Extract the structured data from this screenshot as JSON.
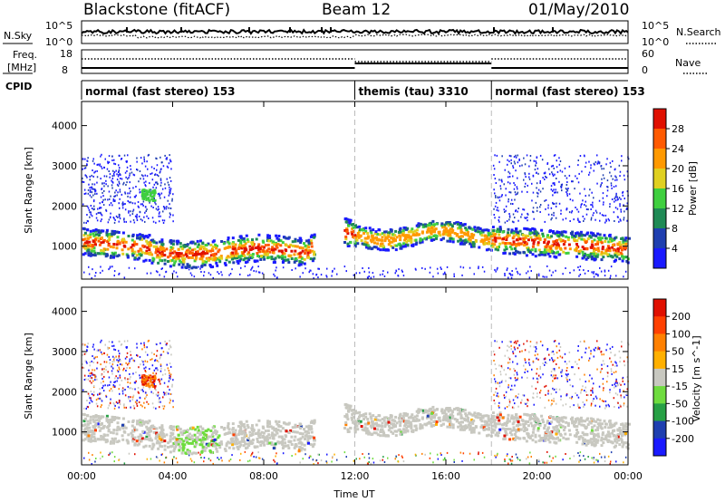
{
  "header": {
    "title": "Blackstone (fitACF)",
    "beam": "Beam 12",
    "date": "01/May/2010"
  },
  "panel_labels": {
    "nsky": "N.Sky",
    "nsearch": "N.Search",
    "freq": "Freq.",
    "freq_unit": "[MHz]",
    "nave": "Nave",
    "cpid": "CPID",
    "nsky_hi": "10^5",
    "nsky_lo": "10^0",
    "nsearch_hi": "10^5",
    "nsearch_lo": "10^0",
    "freq_hi": "18",
    "freq_lo": "8",
    "nave_hi": "60",
    "nave_lo": "0"
  },
  "colors": {
    "power": [
      "#1a1aff",
      "#1f3fb0",
      "#1f8a55",
      "#3fcf3f",
      "#e0d020",
      "#ff9900",
      "#ff5a00",
      "#e01000"
    ],
    "velocity": [
      "#1a1aff",
      "#1f3fb0",
      "#27a045",
      "#6fdc3f",
      "#c8c8c0",
      "#ffb000",
      "#ff8000",
      "#ff4000",
      "#e01000"
    ]
  },
  "chart_data": [
    {
      "type": "line",
      "name": "status",
      "xlim": [
        0,
        24
      ],
      "series": [
        {
          "name": "N.Sky",
          "style": "solid"
        },
        {
          "name": "N.Search",
          "style": "dotted"
        },
        {
          "name": "Freq.",
          "style": "solid"
        },
        {
          "name": "Nave",
          "style": "dotted"
        }
      ]
    },
    {
      "type": "table",
      "name": "cpid",
      "segments": [
        {
          "start": 0,
          "end": 12,
          "label": "normal (fast stereo) 153"
        },
        {
          "start": 12,
          "end": 18,
          "label": "themis (tau) 3310"
        },
        {
          "start": 18,
          "end": 24,
          "label": "normal (fast stereo) 153"
        }
      ]
    },
    {
      "type": "heatmap",
      "name": "power",
      "ylabel": "Slant Range [km]",
      "xlim": [
        0,
        24
      ],
      "ylim": [
        180,
        4600
      ],
      "yticks": [
        "1000",
        "2000",
        "3000",
        "4000"
      ],
      "colorbar_label": "Power [dB]",
      "colorbar_ticks": [
        "4",
        "8",
        "12",
        "16",
        "20",
        "24",
        "28"
      ]
    },
    {
      "type": "heatmap",
      "name": "velocity",
      "ylabel": "Slant Range [km]",
      "xlabel": "Time UT",
      "xlim": [
        0,
        24
      ],
      "ylim": [
        180,
        4600
      ],
      "xticks": [
        "00:00",
        "04:00",
        "08:00",
        "12:00",
        "16:00",
        "20:00",
        "00:00"
      ],
      "yticks": [
        "1000",
        "2000",
        "3000",
        "4000"
      ],
      "colorbar_label": "Velocity [m s^-1]",
      "colorbar_ticks": [
        "200",
        "100",
        "50",
        "15",
        "-15",
        "-50",
        "-100",
        "-200"
      ]
    }
  ]
}
